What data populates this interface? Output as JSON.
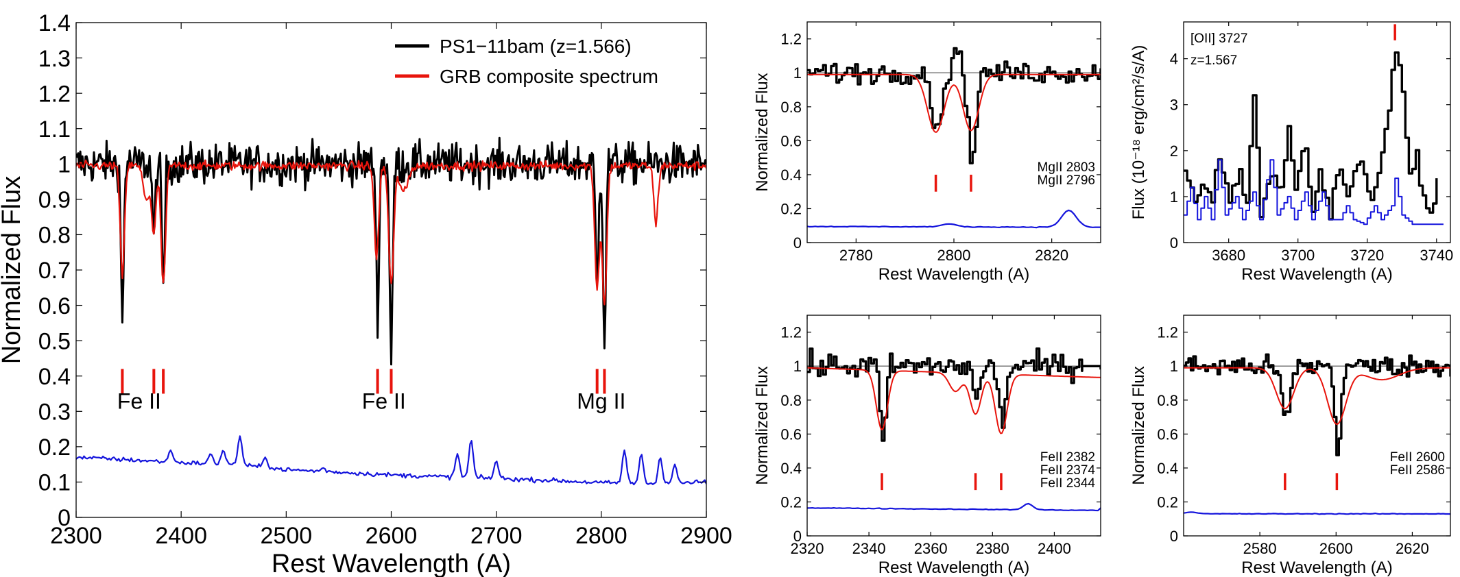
{
  "chart_data": [
    {
      "id": "main",
      "type": "line",
      "xlabel": "Rest Wavelength  (A)",
      "ylabel": "Normalized Flux",
      "xlim": [
        2300,
        2900
      ],
      "ylim": [
        0,
        1.4
      ],
      "xticks": [
        2300,
        2400,
        2500,
        2600,
        2700,
        2800,
        2900
      ],
      "yticks": [
        0,
        0.1,
        0.2,
        0.3,
        0.4,
        0.5,
        0.6,
        0.7,
        0.8,
        0.9,
        1,
        1.1,
        1.2,
        1.3,
        1.4
      ],
      "legend": {
        "placement": "top-right",
        "entries": [
          {
            "label": "PS1−11bam (z=1.566)",
            "color": "#000000"
          },
          {
            "label": "GRB composite spectrum",
            "color": "#e8140c"
          }
        ]
      },
      "series": [
        {
          "name": "PS1−11bam (z=1.566)",
          "color": "#000000",
          "style": "noisy",
          "baseline": 1.0,
          "noise": 0.055,
          "absorptions": [
            [
              2344,
              0.55,
              1.3
            ],
            [
              2374,
              0.78,
              1.3
            ],
            [
              2383,
              0.66,
              1.4
            ],
            [
              2587,
              0.57,
              1.3
            ],
            [
              2600,
              0.44,
              1.4
            ],
            [
              2796,
              0.65,
              1.4
            ],
            [
              2803,
              0.5,
              1.3
            ]
          ],
          "x_start": 2300,
          "x_end": 2900
        },
        {
          "name": "GRB composite spectrum",
          "color": "#e8140c",
          "style": "smooth",
          "baseline": 0.995,
          "absorptions": [
            [
              2344,
              0.68,
              2.0
            ],
            [
              2374,
              0.8,
              2.0
            ],
            [
              2383,
              0.66,
              2.2
            ],
            [
              2586,
              0.74,
              2.2
            ],
            [
              2600,
              0.66,
              2.4
            ],
            [
              2796,
              0.65,
              2.2
            ],
            [
              2803,
              0.6,
              2.2
            ],
            [
              2852,
              0.83,
              2.0
            ],
            [
              2367,
              0.9,
              3.0
            ],
            [
              2612,
              0.92,
              4.0
            ]
          ],
          "x_start": 2300,
          "x_end": 2900
        },
        {
          "name": "error",
          "color": "#1414dc",
          "style": "error",
          "points": [
            [
              2300,
              0.17
            ],
            [
              2350,
              0.163
            ],
            [
              2400,
              0.155
            ],
            [
              2450,
              0.15
            ],
            [
              2500,
              0.135
            ],
            [
              2550,
              0.128
            ],
            [
              2600,
              0.12
            ],
            [
              2650,
              0.115
            ],
            [
              2700,
              0.11
            ],
            [
              2750,
              0.105
            ],
            [
              2800,
              0.098
            ],
            [
              2850,
              0.095
            ],
            [
              2900,
              0.1
            ]
          ],
          "spikes": [
            [
              2390,
              0.19
            ],
            [
              2428,
              0.18
            ],
            [
              2440,
              0.19
            ],
            [
              2456,
              0.23
            ],
            [
              2480,
              0.17
            ],
            [
              2535,
              0.14
            ],
            [
              2663,
              0.18
            ],
            [
              2676,
              0.22
            ],
            [
              2700,
              0.16
            ],
            [
              2822,
              0.19
            ],
            [
              2838,
              0.18
            ],
            [
              2856,
              0.17
            ],
            [
              2870,
              0.15
            ]
          ],
          "noise": 0.006
        },
        {
          "name": "hline",
          "color": "#000000",
          "style": "hline",
          "y": 1.0,
          "hidden": true
        }
      ],
      "markers": [
        2344,
        2374,
        2383,
        2587,
        2600,
        2796,
        2803
      ],
      "marker_range": [
        0.35,
        0.42
      ],
      "annotations": [
        {
          "text": "Fe II",
          "x": 2360,
          "y": 0.3
        },
        {
          "text": "Fe II",
          "x": 2593,
          "y": 0.3
        },
        {
          "text": "Mg II",
          "x": 2800,
          "y": 0.3
        }
      ]
    },
    {
      "id": "mgii",
      "type": "line",
      "xlabel": "Rest Wavelength  (A)",
      "ylabel": "Normalized Flux",
      "xlim": [
        2770,
        2830
      ],
      "ylim": [
        0,
        1.3
      ],
      "xticks": [
        2780,
        2800,
        2820
      ],
      "yticks": [
        0,
        0.2,
        0.4,
        0.6,
        0.8,
        1,
        1.2
      ],
      "hline": 1.0,
      "series": [
        {
          "name": "spectrum",
          "color": "#000000",
          "style": "step",
          "baseline": 1.0,
          "noise": 0.06,
          "absorptions": [
            [
              2796.3,
              0.63,
              0.9
            ],
            [
              2803.5,
              0.5,
              0.8
            ]
          ],
          "bumps": [
            [
              2800.2,
              1.15,
              0.7
            ]
          ],
          "x_start": 2770,
          "x_end": 2830
        },
        {
          "name": "composite",
          "color": "#e8140c",
          "style": "smooth",
          "baseline": 0.99,
          "absorptions": [
            [
              2796.3,
              0.65,
              1.7
            ],
            [
              2803.5,
              0.66,
              1.6
            ]
          ],
          "x_start": 2770,
          "x_end": 2830
        },
        {
          "name": "error",
          "color": "#1414dc",
          "style": "error",
          "points": [
            [
              2770,
              0.095
            ],
            [
              2830,
              0.09
            ]
          ],
          "spikes": [
            [
              2799,
              0.11
            ],
            [
              2823.5,
              0.19
            ]
          ],
          "noise": 0.002
        }
      ],
      "markers": [
        2796.3,
        2803.5
      ],
      "marker_range": [
        0.3,
        0.4
      ],
      "labels": [
        "MgII 2803",
        "MgII 2796"
      ],
      "label_pos": "right"
    },
    {
      "id": "oii",
      "type": "line",
      "xlabel": "Rest Wavelength  (A)",
      "ylabel": "Flux (10⁻¹⁸ erg/cm²/s/A)",
      "xlim": [
        3667,
        3744
      ],
      "ylim": [
        0,
        4.8
      ],
      "xticks": [
        3680,
        3700,
        3720,
        3740
      ],
      "yticks": [
        0,
        1,
        2,
        3,
        4
      ],
      "series": [
        {
          "name": "spectrum",
          "color": "#000000",
          "style": "step",
          "points": [
            [
              3667,
              1.6
            ],
            [
              3670,
              0.8
            ],
            [
              3672,
              1.3
            ],
            [
              3675,
              1.0
            ],
            [
              3677,
              1.8
            ],
            [
              3680,
              0.9
            ],
            [
              3683,
              1.6
            ],
            [
              3685,
              0.7
            ],
            [
              3687,
              3.3
            ],
            [
              3689,
              0.7
            ],
            [
              3692,
              1.5
            ],
            [
              3695,
              1.1
            ],
            [
              3697,
              2.5
            ],
            [
              3699,
              1.2
            ],
            [
              3702,
              1.9
            ],
            [
              3704,
              0.7
            ],
            [
              3706,
              1.4
            ],
            [
              3709,
              0.5
            ],
            [
              3711,
              1.6
            ],
            [
              3713,
              1.1
            ],
            [
              3715,
              1.3
            ],
            [
              3718,
              1.8
            ],
            [
              3720,
              1.0
            ],
            [
              3722,
              1.2
            ],
            [
              3724,
              2.0
            ],
            [
              3726,
              3.0
            ],
            [
              3728,
              4.2
            ],
            [
              3730,
              3.2
            ],
            [
              3732,
              1.5
            ],
            [
              3734,
              1.8
            ],
            [
              3736,
              1.0
            ],
            [
              3738,
              0.4
            ],
            [
              3740,
              1.4
            ]
          ],
          "noise": 0.25
        },
        {
          "name": "error",
          "color": "#1414dc",
          "style": "step",
          "points": [
            [
              3667,
              0.6
            ],
            [
              3669,
              1.2
            ],
            [
              3671,
              0.5
            ],
            [
              3673,
              1.0
            ],
            [
              3675,
              0.5
            ],
            [
              3677,
              1.8
            ],
            [
              3679,
              0.6
            ],
            [
              3682,
              1.0
            ],
            [
              3684,
              0.5
            ],
            [
              3687,
              1.1
            ],
            [
              3689,
              0.5
            ],
            [
              3692,
              1.8
            ],
            [
              3694,
              0.6
            ],
            [
              3697,
              1.0
            ],
            [
              3699,
              0.5
            ],
            [
              3702,
              1.1
            ],
            [
              3704,
              0.5
            ],
            [
              3707,
              1.1
            ],
            [
              3709,
              0.5
            ],
            [
              3712,
              0.5
            ],
            [
              3714,
              0.8
            ],
            [
              3716,
              0.5
            ],
            [
              3719,
              0.4
            ],
            [
              3722,
              0.8
            ],
            [
              3724,
              0.5
            ],
            [
              3727,
              0.8
            ],
            [
              3728,
              1.4
            ],
            [
              3730,
              0.6
            ],
            [
              3733,
              0.4
            ],
            [
              3737,
              0.4
            ],
            [
              3742,
              0.4
            ]
          ],
          "noise": 0.0
        }
      ],
      "markers": [
        3728
      ],
      "marker_range": [
        4.4,
        4.75
      ],
      "labels": [
        "[OII] 3727",
        "z=1.567"
      ],
      "label_pos": "left"
    },
    {
      "id": "feii_a",
      "type": "line",
      "xlabel": "Rest Wavelength  (A)",
      "ylabel": "Normalized Flux",
      "xlim": [
        2320,
        2415
      ],
      "ylim": [
        0,
        1.3
      ],
      "xticks": [
        2320,
        2340,
        2360,
        2380,
        2400
      ],
      "yticks": [
        0,
        0.2,
        0.4,
        0.6,
        0.8,
        1,
        1.2
      ],
      "hline": 1.0,
      "series": [
        {
          "name": "spectrum",
          "color": "#000000",
          "style": "step",
          "baseline": 1.0,
          "noise": 0.07,
          "absorptions": [
            [
              2344.2,
              0.55,
              0.9
            ],
            [
              2374.5,
              0.78,
              1.0
            ],
            [
              2382.8,
              0.64,
              1.0
            ]
          ],
          "x_start": 2320,
          "x_end": 2409,
          "tail": [
            [
              2409,
              1.0
            ],
            [
              2415,
              0.98
            ]
          ]
        },
        {
          "name": "composite",
          "color": "#e8140c",
          "style": "smooth",
          "baseline": 0.99,
          "absorptions": [
            [
              2344.2,
              0.64,
              1.8
            ],
            [
              2374.5,
              0.75,
              1.8
            ],
            [
              2382.8,
              0.64,
              1.9
            ],
            [
              2368,
              0.88,
              2.0
            ]
          ],
          "x_start": 2320,
          "x_end": 2415,
          "slope": -0.0006
        },
        {
          "name": "error",
          "color": "#1414dc",
          "style": "error",
          "points": [
            [
              2320,
              0.165
            ],
            [
              2415,
              0.15
            ]
          ],
          "spikes": [
            [
              2391.5,
              0.19
            ]
          ],
          "noise": 0.002
        }
      ],
      "markers": [
        2344.2,
        2374.5,
        2382.8
      ],
      "marker_range": [
        0.27,
        0.37
      ],
      "labels": [
        "FeII 2382",
        "FeII 2374",
        "FeII 2344"
      ],
      "label_pos": "right"
    },
    {
      "id": "feii_b",
      "type": "line",
      "xlabel": "Rest Wavelength  (A)",
      "ylabel": "Normalized Flux",
      "xlim": [
        2560,
        2630
      ],
      "ylim": [
        0,
        1.3
      ],
      "xticks": [
        2580,
        2600,
        2620
      ],
      "yticks": [
        0,
        0.2,
        0.4,
        0.6,
        0.8,
        1,
        1.2
      ],
      "hline": 1.0,
      "series": [
        {
          "name": "spectrum",
          "color": "#000000",
          "style": "step",
          "baseline": 1.0,
          "noise": 0.06,
          "absorptions": [
            [
              2586.6,
              0.7,
              1.2
            ],
            [
              2600.2,
              0.45,
              0.7
            ]
          ],
          "x_start": 2560,
          "x_end": 2630
        },
        {
          "name": "composite",
          "color": "#e8140c",
          "style": "smooth",
          "baseline": 0.99,
          "absorptions": [
            [
              2586.6,
              0.75,
              2.3
            ],
            [
              2600.2,
              0.66,
              2.4
            ],
            [
              2612,
              0.92,
              4.5
            ]
          ],
          "x_start": 2560,
          "x_end": 2630
        },
        {
          "name": "error",
          "color": "#1414dc",
          "style": "error",
          "points": [
            [
              2560,
              0.13
            ],
            [
              2630,
              0.13
            ]
          ],
          "spikes": [
            [
              2562,
              0.14
            ]
          ],
          "noise": 0.002
        }
      ],
      "markers": [
        2586.6,
        2600.2
      ],
      "marker_range": [
        0.27,
        0.37
      ],
      "labels": [
        "FeII 2600",
        "FeII 2586"
      ],
      "label_pos": "right"
    }
  ]
}
